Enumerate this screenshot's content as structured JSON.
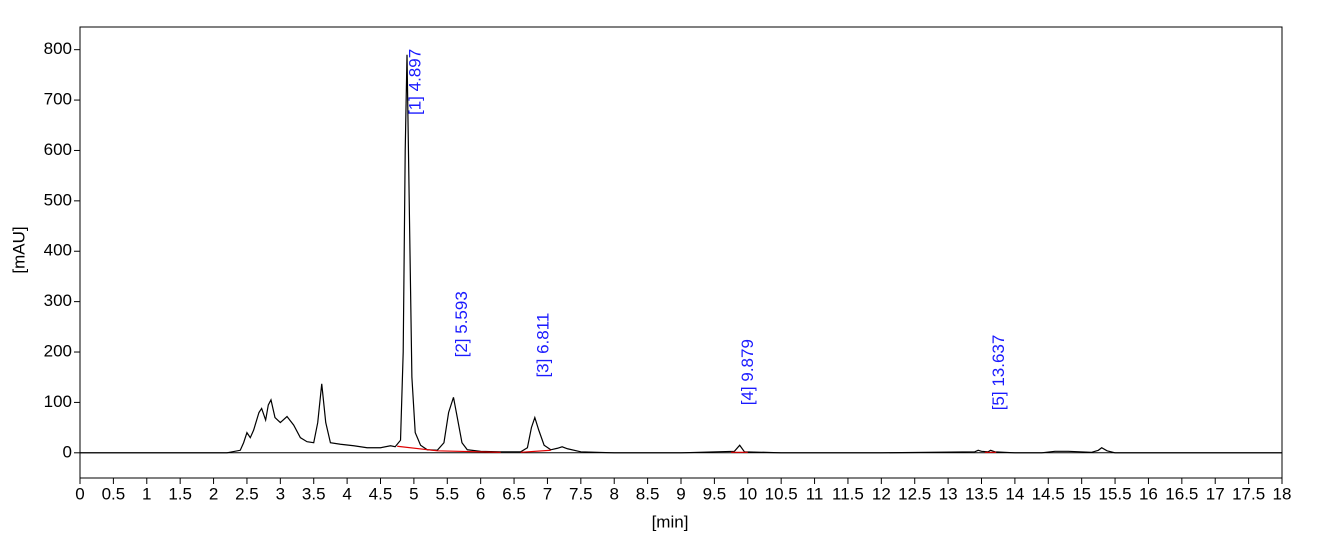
{
  "chart_data": {
    "type": "line",
    "xlabel": "[min]",
    "ylabel": "[mAU]",
    "xlim": [
      0,
      18
    ],
    "ylim": [
      -50,
      845
    ],
    "xticks": [
      0,
      0.5,
      1,
      1.5,
      2,
      2.5,
      3,
      3.5,
      4,
      4.5,
      5,
      5.5,
      6,
      6.5,
      7,
      7.5,
      8,
      8.5,
      9,
      9.5,
      10,
      10.5,
      11,
      11.5,
      12,
      12.5,
      13,
      13.5,
      14,
      14.5,
      15,
      15.5,
      16,
      16.5,
      17,
      17.5,
      18
    ],
    "yticks": [
      0,
      100,
      200,
      300,
      400,
      500,
      600,
      700,
      800
    ],
    "x": [
      0,
      2.2,
      2.4,
      2.45,
      2.5,
      2.55,
      2.6,
      2.68,
      2.72,
      2.78,
      2.82,
      2.86,
      2.92,
      3.0,
      3.1,
      3.2,
      3.3,
      3.4,
      3.5,
      3.56,
      3.62,
      3.68,
      3.75,
      3.9,
      4.1,
      4.3,
      4.5,
      4.65,
      4.72,
      4.8,
      4.84,
      4.87,
      4.897,
      4.93,
      4.97,
      5.02,
      5.1,
      5.2,
      5.35,
      5.45,
      5.52,
      5.593,
      5.65,
      5.72,
      5.8,
      6.0,
      6.3,
      6.6,
      6.7,
      6.76,
      6.811,
      6.87,
      6.95,
      7.05,
      7.15,
      7.22,
      7.3,
      7.5,
      8,
      9,
      9.8,
      9.879,
      9.95,
      10.5,
      12,
      13.4,
      13.45,
      13.5,
      13.6,
      13.637,
      13.7,
      14,
      14.4,
      14.6,
      14.8,
      15.15,
      15.25,
      15.3,
      15.38,
      15.5,
      16,
      18
    ],
    "series": [
      {
        "color": "#000000",
        "values": [
          0,
          0,
          5,
          20,
          40,
          30,
          45,
          80,
          88,
          65,
          95,
          105,
          70,
          60,
          72,
          55,
          30,
          22,
          20,
          60,
          137,
          60,
          20,
          17,
          14,
          10,
          10,
          14,
          12,
          25,
          200,
          600,
          790,
          500,
          150,
          40,
          15,
          6,
          5,
          20,
          80,
          110,
          70,
          20,
          6,
          3,
          2,
          2,
          10,
          50,
          70,
          45,
          15,
          6,
          9,
          12,
          8,
          2,
          0,
          0,
          3,
          15,
          2,
          0,
          0,
          2,
          5,
          3,
          2,
          5,
          2,
          0,
          0,
          3,
          3,
          1,
          5,
          10,
          4,
          0,
          0,
          0
        ]
      },
      {
        "color": "#e00000",
        "x": [
          4.75,
          5.35,
          6.3,
          null,
          6.6,
          7.05,
          null,
          9.75,
          10.0,
          null,
          13.55,
          13.72
        ],
        "values": [
          13,
          4,
          1,
          null,
          1,
          5,
          null,
          1,
          1,
          null,
          1,
          1
        ]
      }
    ],
    "annotations": [
      {
        "text": "[1]  4.897",
        "x": 4.897
      },
      {
        "text": "[2]  5.593",
        "x": 5.593
      },
      {
        "text": "[3]  6.811",
        "x": 6.811
      },
      {
        "text": "[4]  9.879",
        "x": 9.879
      },
      {
        "text": "[5]  13.637",
        "x": 13.637
      }
    ]
  }
}
